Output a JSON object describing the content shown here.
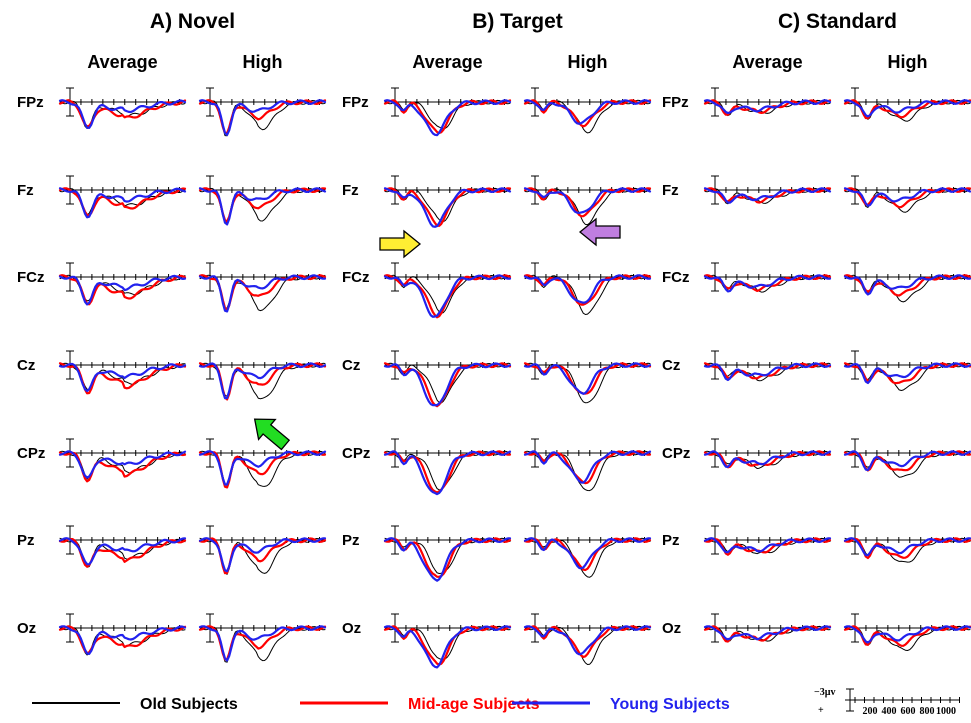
{
  "chart_data": {
    "type": "line",
    "panels": [
      {
        "key": "novel",
        "title": "A) Novel",
        "columns": [
          "Average",
          "High"
        ]
      },
      {
        "key": "target",
        "title": "B) Target",
        "columns": [
          "Average",
          "High"
        ]
      },
      {
        "key": "standard",
        "title": "C) Standard",
        "columns": [
          "Average",
          "High"
        ]
      }
    ],
    "electrodes": [
      "FPz",
      "Fz",
      "FCz",
      "Cz",
      "CPz",
      "Pz",
      "Oz"
    ],
    "series": [
      {
        "name": "Old Subjects",
        "color": "#000000"
      },
      {
        "name": "Mid-age Subjects",
        "color": "#ff0000"
      },
      {
        "name": "Young Subjects",
        "color": "#2222ee"
      }
    ],
    "x_unit": "ms",
    "xlim": [
      -100,
      1100
    ],
    "y_unit": "µV",
    "polarity": "positive plotted downward",
    "scale_bar": {
      "label": "−3µv",
      "polarity_sign": "+",
      "tick_labels": [
        "200",
        "400",
        "600",
        "800",
        "1000"
      ]
    },
    "arrows": [
      {
        "panel": "target",
        "column": "Average",
        "electrode": "Fz",
        "color": "#ffee33",
        "direction": "right"
      },
      {
        "panel": "target",
        "column": "High",
        "electrode": "Fz",
        "color": "#c07ee0",
        "direction": "left"
      },
      {
        "panel": "novel",
        "column": "High",
        "electrode": "Cz",
        "color": "#22dd22",
        "direction": "up-left"
      }
    ]
  }
}
